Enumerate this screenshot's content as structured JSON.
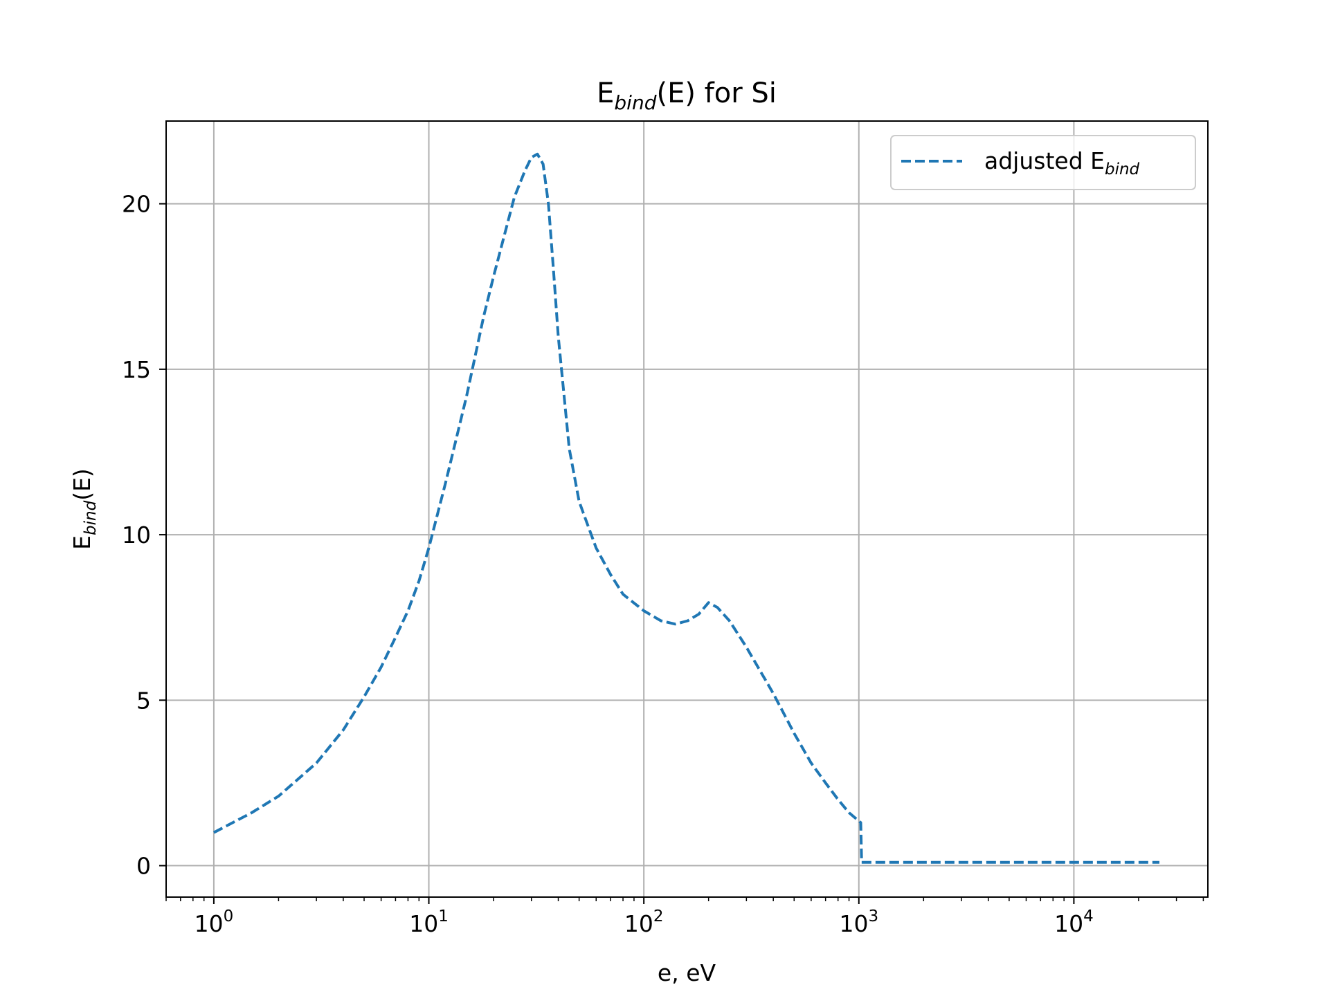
{
  "chart_data": {
    "type": "line",
    "title": {
      "main": "E",
      "sub": "bind",
      "rest": "(E) for Si"
    },
    "xlabel": "e, eV",
    "ylabel": {
      "main": "E",
      "sub": "bind",
      "rest": "(E)"
    },
    "xscale": "log",
    "xlim": [
      0.6,
      42000
    ],
    "ylim": [
      -0.95,
      22.5
    ],
    "grid": true,
    "legend_position": "top-right",
    "x_ticks": [
      {
        "base": "10",
        "exp": "0",
        "value": 1
      },
      {
        "base": "10",
        "exp": "1",
        "value": 10
      },
      {
        "base": "10",
        "exp": "2",
        "value": 100
      },
      {
        "base": "10",
        "exp": "3",
        "value": 1000
      },
      {
        "base": "10",
        "exp": "4",
        "value": 10000
      }
    ],
    "y_ticks": [
      "0",
      "5",
      "10",
      "15",
      "20"
    ],
    "series": [
      {
        "name": {
          "main": "adjusted E",
          "sub": "bind"
        },
        "color": "#1f77b4",
        "style": "dashed",
        "x": [
          1,
          1.5,
          2,
          3,
          4,
          5,
          6,
          7,
          8,
          9,
          10,
          12,
          15,
          18,
          20,
          25,
          28,
          30,
          32,
          34,
          36,
          38,
          40,
          45,
          50,
          60,
          70,
          80,
          100,
          120,
          140,
          160,
          180,
          200,
          220,
          250,
          300,
          400,
          500,
          600,
          700,
          800,
          900,
          1000,
          1020,
          1030,
          1100,
          1500,
          2000,
          5000,
          10000,
          15000,
          20000,
          25000
        ],
        "y": [
          1.0,
          1.6,
          2.1,
          3.1,
          4.1,
          5.1,
          6.0,
          6.9,
          7.7,
          8.6,
          9.6,
          11.6,
          14.2,
          16.6,
          17.8,
          20.2,
          21.0,
          21.4,
          21.5,
          21.2,
          20.0,
          18.0,
          16.0,
          12.6,
          11.0,
          9.6,
          8.8,
          8.2,
          7.7,
          7.4,
          7.3,
          7.4,
          7.6,
          7.95,
          7.8,
          7.4,
          6.6,
          5.2,
          4.0,
          3.1,
          2.5,
          2.0,
          1.6,
          1.35,
          1.3,
          0.1,
          0.1,
          0.1,
          0.1,
          0.1,
          0.1,
          0.1,
          0.1,
          0.1
        ]
      }
    ]
  }
}
